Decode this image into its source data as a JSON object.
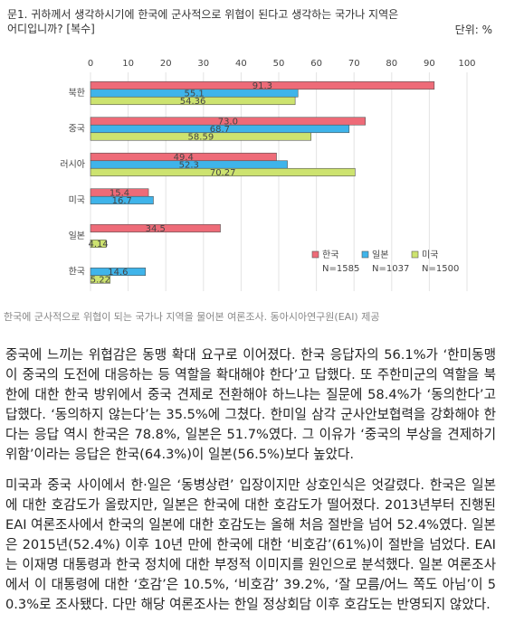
{
  "chart_data": {
    "type": "hbar-grouped",
    "title": "문1. 귀하께서 생각하시기에 한국에 군사적으로 위협이 된다고 생각하는 국가나 지역은 어디입니까? [복수]",
    "unit": "단위: %",
    "categories": [
      "북한",
      "중국",
      "러시아",
      "미국",
      "일본",
      "한국"
    ],
    "series": [
      {
        "name": "한국",
        "n": "N=1585",
        "color": "#ee6b78",
        "values": [
          91.3,
          73.0,
          49.4,
          15.4,
          34.5,
          null
        ],
        "value_labels": [
          "91.3",
          "73.0",
          "49.4",
          "15.4",
          "34.5",
          null
        ]
      },
      {
        "name": "일본",
        "n": "N=1037",
        "color": "#3fb4ea",
        "values": [
          55.1,
          68.7,
          52.3,
          16.7,
          null,
          14.6
        ],
        "value_labels": [
          "55.1",
          "68.7",
          "52.3",
          "16.7",
          null,
          "14.6"
        ]
      },
      {
        "name": "미국",
        "n": "N=1500",
        "color": "#cde36f",
        "values": [
          54.36,
          58.59,
          70.27,
          null,
          4.14,
          5.22
        ]
      }
    ],
    "xlim": [
      0,
      100
    ],
    "xticks": [
      0,
      10,
      20,
      30,
      40,
      50,
      60,
      70,
      80,
      90,
      100
    ],
    "grid": true
  },
  "caption": "한국에 군사적으로 위협이 되는 국가나 지역을 물어본 여론조사. 동아시아연구원(EAI) 제공",
  "paragraphs": [
    "중국에 느끼는 위협감은 동맹 확대 요구로 이어졌다. 한국 응답자의 56.1%가 ‘한미동맹이 중국의 도전에 대응하는 등 역할을 확대해야 한다’고 답했다. 또 주한미군의 역할을 북한에 대한 한국 방위에서 중국 견제로 전환해야 하느냐는 질문에 58.4%가 ‘동의한다’고 답했다. ‘동의하지 않는다’는 35.5%에 그쳤다. 한미일 삼각 군사안보협력을 강화해야 한다는 응답 역시 한국은 78.8%, 일본은 51.7%였다. 그 이유가 ‘중국의 부상을 견제하기 위함’이라는 응답은 한국(64.3%)이 일본(56.5%)보다 높았다.",
    "미국과 중국 사이에서 한·일은 ‘동병상련’ 입장이지만 상호인식은 엇갈렸다. 한국은 일본에 대한 호감도가 올랐지만, 일본은 한국에 대한 호감도가 떨어졌다. 2013년부터 진행된 EAI 여론조사에서 한국의 일본에 대한 호감도는 올해 처음 절반을 넘어 52.4%였다. 일본은 2015년(52.4%) 이후 10년 만에 한국에 대한 ‘비호감’(61%)이 절반을 넘었다. EAI는 이재명 대통령과 한국 정치에 대한 부정적 이미지를 원인으로 분석했다. 일본 여론조사에서 이 대통령에 대한 ‘호감’은 10.5%, ‘비호감’ 39.2%, ‘잘 모름/어느 쪽도 아님’이 50.3%로 조사됐다. 다만 해당 여론조사는 한일 정상회담 이후 호감도는 반영되지 않았다."
  ]
}
